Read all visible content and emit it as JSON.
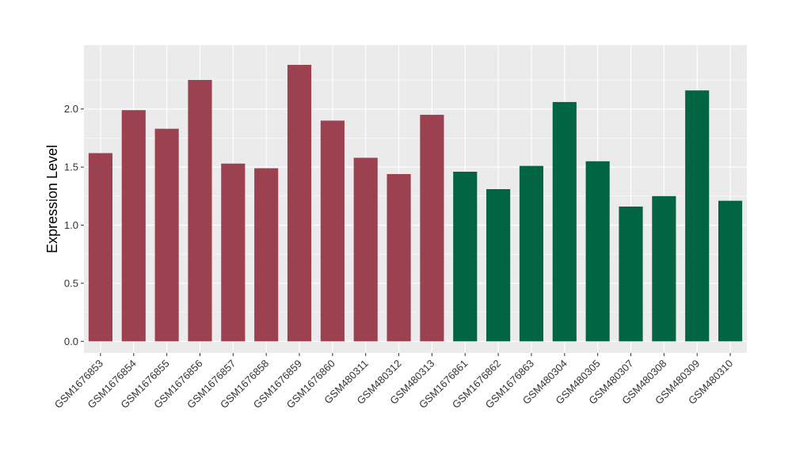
{
  "chart_data": {
    "type": "bar",
    "ylabel": "Expression Level",
    "xlabel": "",
    "ylim": [
      -0.1,
      2.55
    ],
    "yticks": [
      0.0,
      0.5,
      1.0,
      1.5,
      2.0
    ],
    "ytick_labels": [
      "0.0",
      "0.5",
      "1.0",
      "1.5",
      "2.0"
    ],
    "grid": true,
    "categories": [
      "GSM1676853",
      "GSM1676854",
      "GSM1676855",
      "GSM1676856",
      "GSM1676857",
      "GSM1676858",
      "GSM1676859",
      "GSM1676860",
      "GSM480311",
      "GSM480312",
      "GSM480313",
      "GSM1676861",
      "GSM1676862",
      "GSM1676863",
      "GSM480304",
      "GSM480305",
      "GSM480307",
      "GSM480308",
      "GSM480309",
      "GSM480310"
    ],
    "values": [
      1.62,
      1.99,
      1.83,
      2.25,
      1.53,
      1.49,
      2.38,
      1.9,
      1.58,
      1.44,
      1.95,
      1.46,
      1.31,
      1.51,
      2.06,
      1.55,
      1.16,
      1.25,
      2.16,
      1.21
    ],
    "groups": [
      0,
      0,
      0,
      0,
      0,
      0,
      0,
      0,
      0,
      0,
      0,
      1,
      1,
      1,
      1,
      1,
      1,
      1,
      1,
      1
    ],
    "group_colors": [
      "#9b4150",
      "#016443"
    ],
    "panel_background": "#ebebeb",
    "grid_color": "#ffffff"
  }
}
